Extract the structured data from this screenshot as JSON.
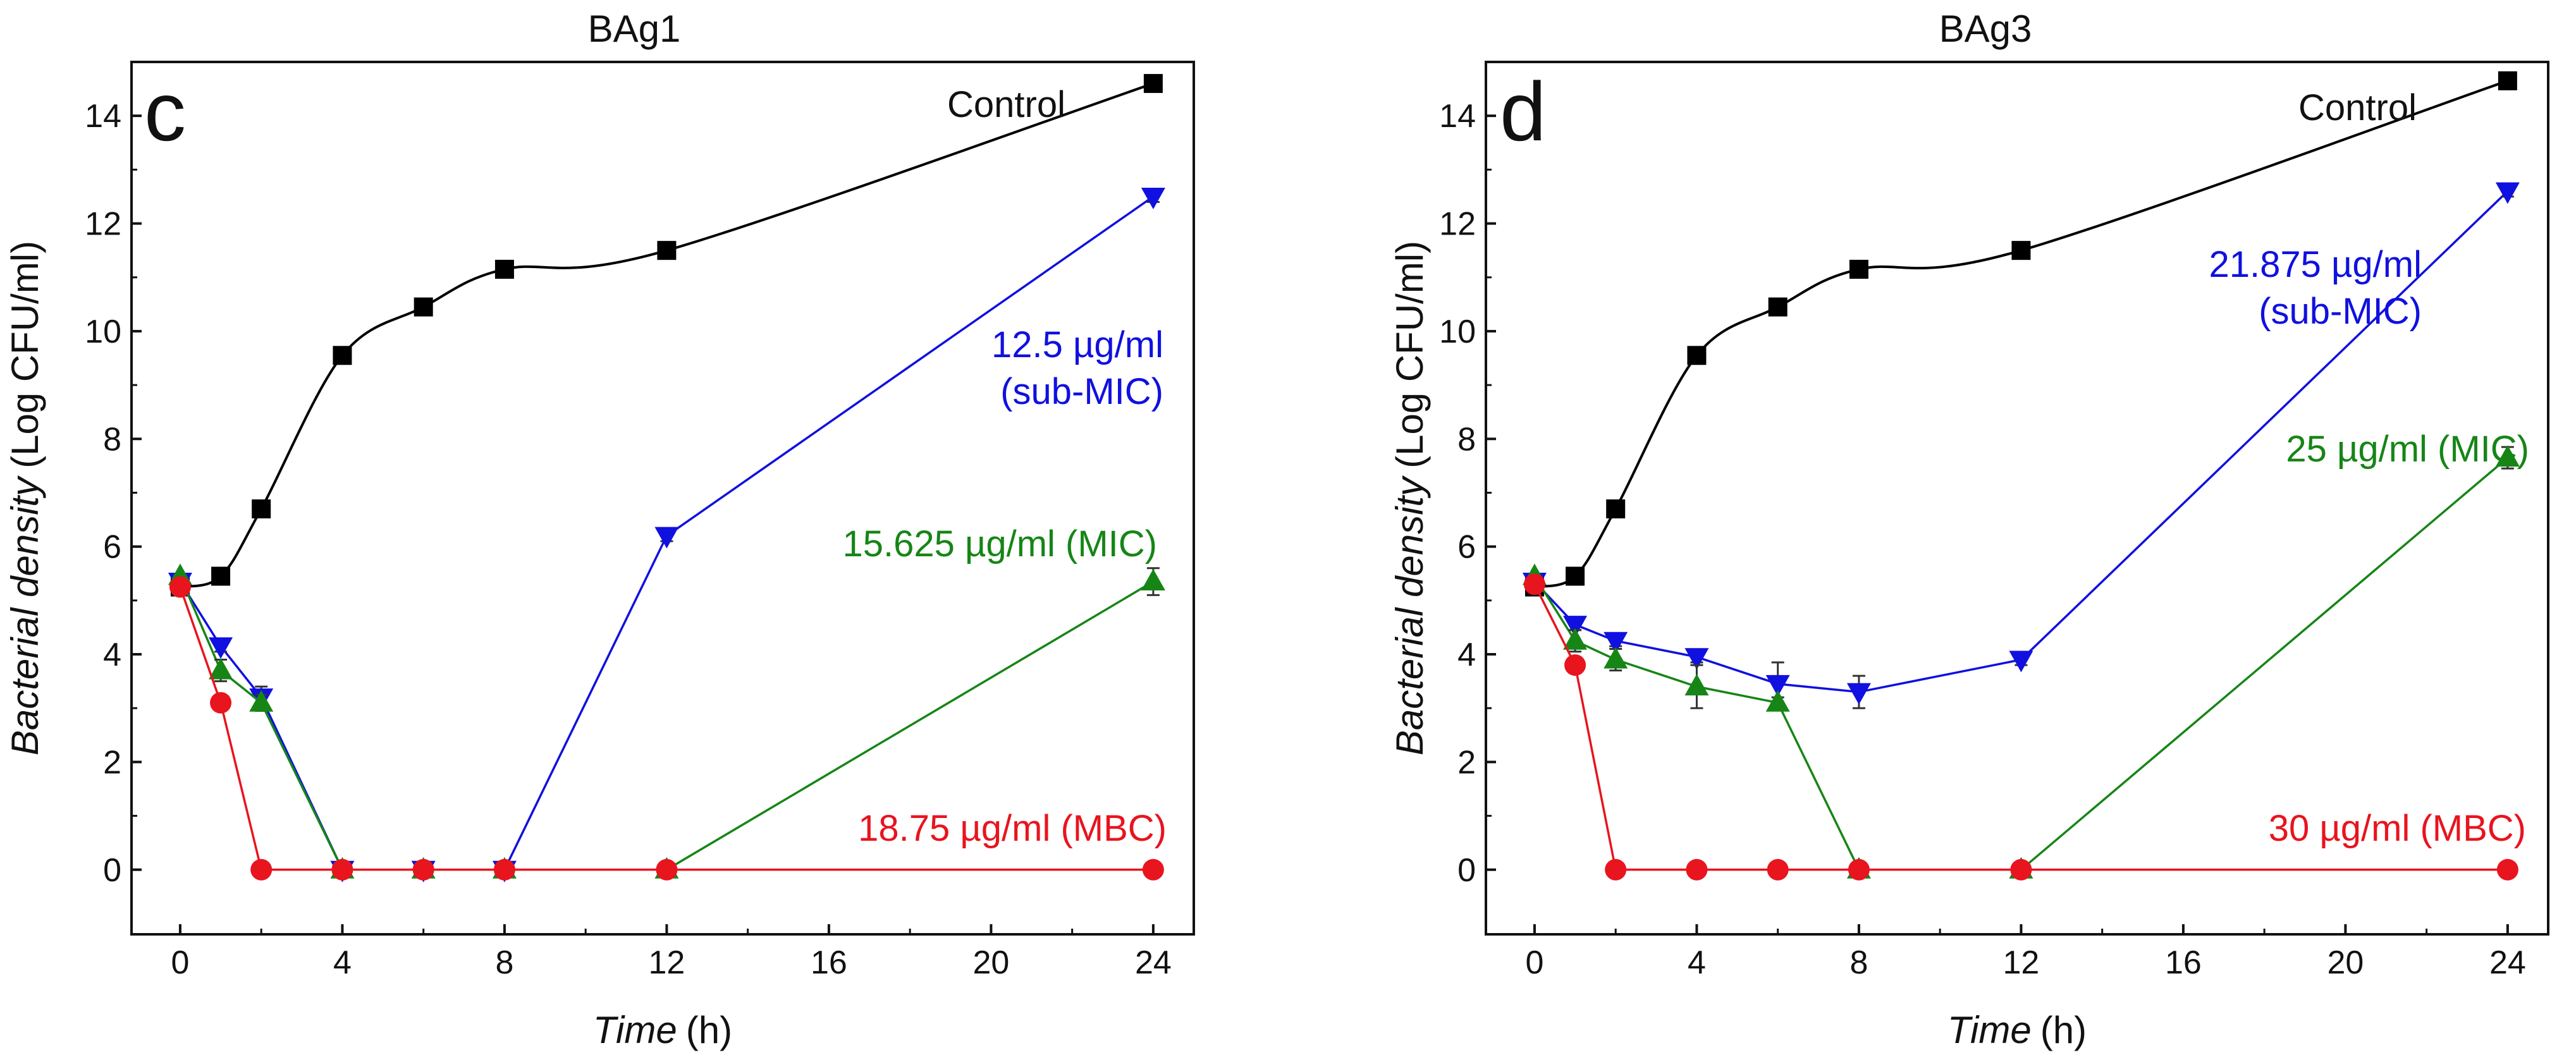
{
  "chart_data": [
    {
      "type": "line",
      "panel": "c",
      "title": "BAg1",
      "xlabel_italic": "Time",
      "xlabel_unit": "(h)",
      "ylabel_italic": "Bacterial density",
      "ylabel_unit": "(Log CFU/ml)",
      "xlim": [
        -1.2,
        25
      ],
      "ylim": [
        -1.2,
        15
      ],
      "xticks": [
        0,
        4,
        8,
        12,
        16,
        20,
        24
      ],
      "yticks": [
        0,
        2,
        4,
        6,
        8,
        10,
        12,
        14
      ],
      "series": [
        {
          "name": "Control",
          "label_lines": [
            "Control"
          ],
          "color": "#000000",
          "marker": "square",
          "smooth": true,
          "x": [
            0,
            1,
            2,
            4,
            6,
            8,
            12,
            24
          ],
          "y": [
            5.25,
            5.45,
            6.7,
            9.55,
            10.45,
            11.15,
            11.5,
            14.6
          ],
          "err": [
            0,
            0,
            0,
            0,
            0,
            0,
            0,
            0
          ]
        },
        {
          "name": "12.5 µg/ml (sub-MIC)",
          "label_lines": [
            "12.5 µg/ml",
            "(sub-MIC)"
          ],
          "color": "#1010e0",
          "marker": "triangle-down",
          "smooth": false,
          "x": [
            0,
            1,
            2,
            4,
            6,
            8,
            12,
            24
          ],
          "y": [
            5.35,
            4.15,
            3.2,
            0,
            0,
            0,
            6.2,
            12.5
          ],
          "err": [
            0,
            0.1,
            0.2,
            0,
            0,
            0,
            0.1,
            0.1
          ]
        },
        {
          "name": "15.625 µg/ml (MIC)",
          "label_lines": [
            "15.625 µg/ml (MIC)"
          ],
          "color": "#168516",
          "marker": "triangle-up",
          "smooth": false,
          "x": [
            0,
            1,
            2,
            4,
            6,
            8,
            12,
            24
          ],
          "y": [
            5.45,
            3.7,
            3.1,
            0,
            0,
            0,
            0,
            5.35
          ],
          "err": [
            0,
            0.2,
            0.15,
            0,
            0,
            0,
            0,
            0.25
          ]
        },
        {
          "name": "18.75 µg/ml (MBC)",
          "label_lines": [
            "18.75 µg/ml (MBC)"
          ],
          "color": "#e8141e",
          "marker": "circle",
          "smooth": false,
          "x": [
            0,
            1,
            2,
            4,
            6,
            8,
            12,
            24
          ],
          "y": [
            5.25,
            3.1,
            0,
            0,
            0,
            0,
            0,
            0
          ],
          "err": [
            0,
            0,
            0,
            0,
            0,
            0,
            0,
            0
          ]
        }
      ]
    },
    {
      "type": "line",
      "panel": "d",
      "title": "BAg3",
      "xlabel_italic": "Time",
      "xlabel_unit": "(h)",
      "ylabel_italic": "Bacterial density",
      "ylabel_unit": "(Log CFU/ml)",
      "xlim": [
        -1.2,
        25
      ],
      "ylim": [
        -1.2,
        15
      ],
      "xticks": [
        0,
        4,
        8,
        12,
        16,
        20,
        24
      ],
      "yticks": [
        0,
        2,
        4,
        6,
        8,
        10,
        12,
        14
      ],
      "series": [
        {
          "name": "Control",
          "label_lines": [
            "Control"
          ],
          "color": "#000000",
          "marker": "square",
          "smooth": true,
          "x": [
            0,
            1,
            2,
            4,
            6,
            8,
            12,
            24
          ],
          "y": [
            5.25,
            5.45,
            6.7,
            9.55,
            10.45,
            11.15,
            11.5,
            14.65
          ],
          "err": [
            0,
            0,
            0,
            0,
            0,
            0.15,
            0.1,
            0
          ]
        },
        {
          "name": "21.875 µg/ml (sub-MIC)",
          "label_lines": [
            "21.875 µg/ml",
            "(sub-MIC)"
          ],
          "color": "#1010e0",
          "marker": "triangle-down",
          "smooth": false,
          "x": [
            0,
            1,
            2,
            4,
            6,
            8,
            12,
            24
          ],
          "y": [
            5.35,
            4.55,
            4.25,
            3.95,
            3.45,
            3.3,
            3.9,
            12.6
          ],
          "err": [
            0,
            0.1,
            0.1,
            0.1,
            0.4,
            0.3,
            0.1,
            0.1
          ]
        },
        {
          "name": "25 µg/ml (MIC)",
          "label_lines": [
            "25 µg/ml (MIC)"
          ],
          "color": "#168516",
          "marker": "triangle-up",
          "smooth": false,
          "x": [
            0,
            1,
            2,
            4,
            6,
            8,
            12,
            24
          ],
          "y": [
            5.45,
            4.25,
            3.9,
            3.4,
            3.1,
            0,
            0,
            7.65
          ],
          "err": [
            0,
            0.2,
            0.2,
            0.4,
            0.1,
            0,
            0,
            0.2
          ]
        },
        {
          "name": "30 µg/ml (MBC)",
          "label_lines": [
            "30 µg/ml (MBC)"
          ],
          "color": "#e8141e",
          "marker": "circle",
          "smooth": false,
          "x": [
            0,
            1,
            2,
            4,
            6,
            8,
            12,
            24
          ],
          "y": [
            5.3,
            3.8,
            0,
            0,
            0,
            0,
            0,
            0
          ],
          "err": [
            0,
            0.15,
            0,
            0,
            0,
            0,
            0,
            0
          ]
        }
      ]
    }
  ]
}
